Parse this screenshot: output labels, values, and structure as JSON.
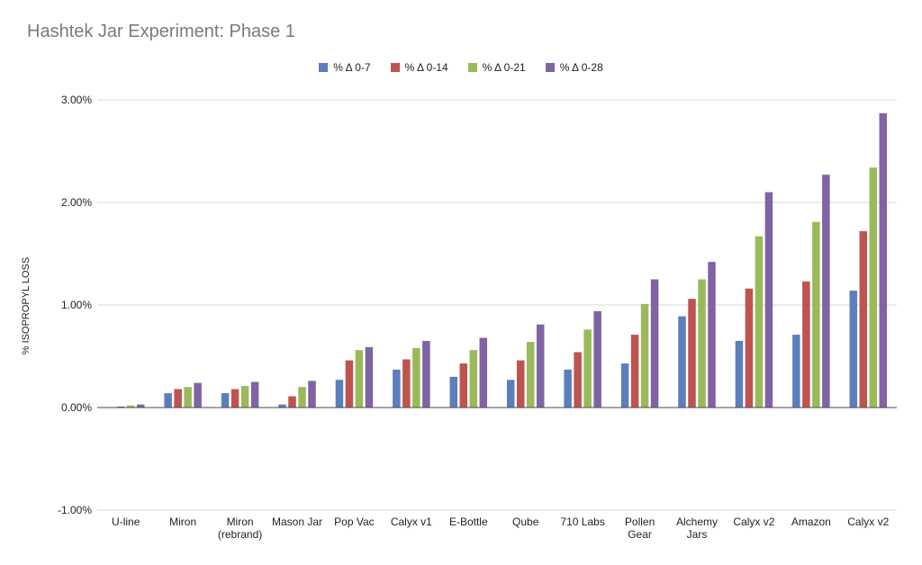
{
  "chart_data": {
    "type": "bar",
    "title": "Hashtek Jar Experiment: Phase 1",
    "xlabel": "",
    "ylabel": "% ISOPROPYL LOSS",
    "ylim": [
      -1.0,
      3.0
    ],
    "yticks": [
      "3.00%",
      "2.00%",
      "1.00%",
      "0.00%",
      "-1.00%"
    ],
    "ytick_values": [
      3.0,
      2.0,
      1.0,
      0.0,
      -1.0
    ],
    "grid": true,
    "legend_position": "top",
    "categories": [
      [
        "U-line"
      ],
      [
        "Miron"
      ],
      [
        "Miron",
        "(rebrand)"
      ],
      [
        "Mason Jar"
      ],
      [
        "Pop Vac"
      ],
      [
        "Calyx v1"
      ],
      [
        "E-Bottle"
      ],
      [
        "Qube"
      ],
      [
        "710 Labs"
      ],
      [
        "Pollen",
        "Gear"
      ],
      [
        "Alchemy",
        "Jars"
      ],
      [
        "Calyx v2"
      ],
      [
        "Amazon"
      ],
      [
        "Calyx v2"
      ]
    ],
    "series": [
      {
        "name": "% Δ 0-7",
        "color": "#5b7fbd",
        "values": [
          0.0,
          0.14,
          0.14,
          0.03,
          0.27,
          0.37,
          0.3,
          0.27,
          0.37,
          0.43,
          0.89,
          0.65,
          0.71,
          1.14
        ]
      },
      {
        "name": "% Δ 0-14",
        "color": "#bf5350",
        "values": [
          0.01,
          0.18,
          0.18,
          0.11,
          0.46,
          0.47,
          0.43,
          0.46,
          0.54,
          0.71,
          1.06,
          1.16,
          1.23,
          1.72
        ]
      },
      {
        "name": "% Δ 0-21",
        "color": "#9aba5a",
        "values": [
          0.02,
          0.2,
          0.21,
          0.2,
          0.56,
          0.58,
          0.56,
          0.64,
          0.76,
          1.01,
          1.25,
          1.67,
          1.81,
          2.34
        ]
      },
      {
        "name": "% Δ 0-28",
        "color": "#7f63a3",
        "values": [
          0.03,
          0.24,
          0.25,
          0.26,
          0.59,
          0.65,
          0.68,
          0.81,
          0.94,
          1.25,
          1.42,
          2.1,
          2.27,
          2.87
        ]
      }
    ]
  }
}
